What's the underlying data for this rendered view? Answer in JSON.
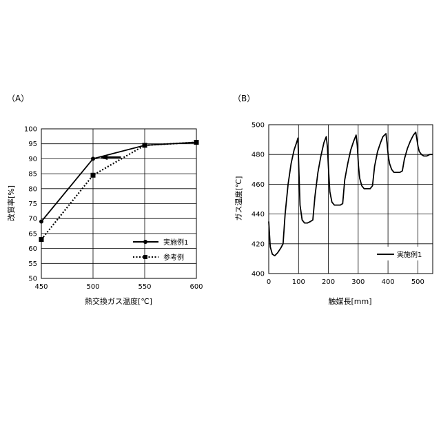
{
  "chart_data": [
    {
      "panel_label": "（A）",
      "type": "line",
      "xlabel": "熱交換ガス温度[℃]",
      "ylabel": "改質率[%]",
      "xlim": [
        450,
        600
      ],
      "ylim": [
        50,
        100
      ],
      "x_ticks": [
        450,
        500,
        550,
        600
      ],
      "y_ticks": [
        50,
        55,
        60,
        65,
        70,
        75,
        80,
        85,
        90,
        95,
        100
      ],
      "grid": true,
      "legend_position": "bottom-right",
      "series": [
        {
          "name": "実施例1",
          "style": "solid",
          "marker": "circle",
          "x": [
            450,
            500,
            550,
            600
          ],
          "y": [
            69,
            90,
            94.5,
            95.5
          ]
        },
        {
          "name": "参考例",
          "style": "dotted",
          "marker": "square",
          "x": [
            450,
            500,
            550,
            600
          ],
          "y": [
            63,
            84.5,
            94.5,
            95.5
          ]
        }
      ],
      "annotation": {
        "type": "arrow",
        "from": [
          527,
          90.5
        ],
        "to": [
          508,
          90.5
        ]
      }
    },
    {
      "panel_label": "（B）",
      "type": "line",
      "xlabel": "触媒長[mm]",
      "ylabel": "ガス温度[℃]",
      "xlim": [
        0,
        550
      ],
      "ylim": [
        400,
        500
      ],
      "x_ticks": [
        0,
        100,
        200,
        300,
        400,
        500
      ],
      "y_ticks": [
        400,
        420,
        440,
        460,
        480,
        500
      ],
      "grid": true,
      "legend_position": "bottom-right",
      "series": [
        {
          "name": "実施例1",
          "style": "solid",
          "x": [
            0,
            5,
            12,
            20,
            30,
            40,
            48,
            55,
            65,
            75,
            85,
            95,
            98,
            101,
            105,
            112,
            120,
            130,
            140,
            148,
            155,
            165,
            175,
            185,
            193,
            197,
            201,
            205,
            212,
            220,
            230,
            240,
            248,
            255,
            265,
            275,
            285,
            293,
            297,
            301,
            305,
            312,
            320,
            330,
            340,
            348,
            355,
            365,
            375,
            383,
            393,
            397,
            401,
            405,
            412,
            420,
            430,
            440,
            448,
            455,
            465,
            475,
            485,
            493,
            497,
            501,
            505,
            512,
            520,
            530,
            540,
            550
          ],
          "y": [
            435,
            418,
            413,
            412,
            414,
            417,
            420,
            440,
            460,
            474,
            483,
            489,
            491,
            470,
            446,
            436,
            434,
            434,
            435,
            436,
            452,
            468,
            479,
            488,
            492,
            485,
            468,
            455,
            448,
            446,
            446,
            446,
            447,
            463,
            474,
            483,
            489,
            493,
            486,
            472,
            464,
            459,
            457,
            457,
            457,
            459,
            472,
            482,
            488,
            492,
            494,
            487,
            479,
            474,
            470,
            468,
            468,
            468,
            469,
            477,
            484,
            489,
            493,
            495,
            490,
            485,
            482,
            480,
            479,
            479,
            480,
            480
          ]
        }
      ]
    }
  ]
}
